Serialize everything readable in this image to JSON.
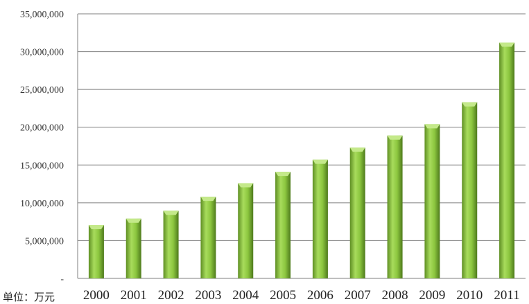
{
  "chart_data": {
    "type": "bar",
    "unit_label": "单位：万元",
    "categories": [
      "2000",
      "2001",
      "2002",
      "2003",
      "2004",
      "2005",
      "2006",
      "2007",
      "2008",
      "2009",
      "2010",
      "2011"
    ],
    "values": [
      7050000,
      7900000,
      8950000,
      10800000,
      12600000,
      14100000,
      15700000,
      17300000,
      18900000,
      20400000,
      23300000,
      31200000
    ],
    "ylim": [
      0,
      35000000
    ],
    "yticks": [
      0,
      5000000,
      10000000,
      15000000,
      20000000,
      25000000,
      30000000,
      35000000
    ],
    "ytick_labels": [
      "-",
      "5,000,000",
      "10,000,000",
      "15,000,000",
      "20,000,000",
      "25,000,000",
      "30,000,000",
      "35,000,000"
    ],
    "grid": true,
    "legend": "none",
    "colors": {
      "bar": "#8cc63f",
      "bar_dark": "#4e7a1c",
      "bar_light": "#c4e98a",
      "grid": "#7f7f7f",
      "axis": "#7f7f7f"
    }
  }
}
